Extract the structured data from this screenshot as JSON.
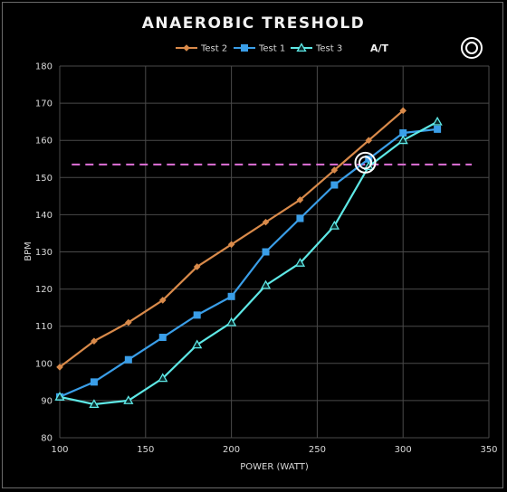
{
  "chart_data": {
    "type": "line",
    "title": "ANAEROBIC TRESHOLD",
    "xlabel": "POWER (WATT)",
    "ylabel": "BPM",
    "xlim": [
      100,
      350
    ],
    "ylim": [
      80,
      180
    ],
    "xticks": [
      100,
      150,
      200,
      250,
      300,
      350
    ],
    "yticks": [
      80,
      90,
      100,
      110,
      120,
      130,
      140,
      150,
      160,
      170,
      180
    ],
    "grid": true,
    "legend_position": "top",
    "series": [
      {
        "name": "Test 2",
        "color": "#d98a4a",
        "marker": "diamond",
        "x": [
          100,
          120,
          140,
          160,
          180,
          200,
          220,
          240,
          260,
          280,
          300
        ],
        "y": [
          99,
          106,
          111,
          117,
          126,
          132,
          138,
          144,
          152,
          160,
          168
        ]
      },
      {
        "name": "Test 1",
        "color": "#3a9ee8",
        "marker": "square",
        "x": [
          100,
          120,
          140,
          160,
          180,
          200,
          220,
          240,
          260,
          280,
          300,
          320
        ],
        "y": [
          91,
          95,
          101,
          107,
          113,
          118,
          130,
          139,
          148,
          155,
          162,
          163
        ]
      },
      {
        "name": "Test 3",
        "color": "#5ee8e6",
        "marker": "triangle",
        "x": [
          100,
          120,
          140,
          160,
          180,
          200,
          220,
          240,
          260,
          280,
          300,
          320
        ],
        "y": [
          91,
          89,
          90,
          96,
          105,
          111,
          121,
          127,
          137,
          153,
          160,
          165
        ]
      }
    ],
    "threshold": {
      "name": "A/T",
      "y": 153.5,
      "x_range": [
        107,
        340
      ],
      "color": "#e070d8",
      "style": "dashed"
    },
    "marker_point": {
      "x": 278,
      "y": 154,
      "color": "#ffffff"
    }
  }
}
